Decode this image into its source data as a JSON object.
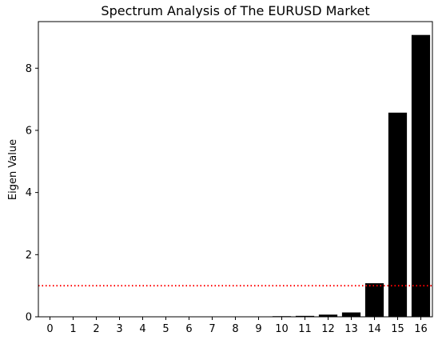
{
  "chart_data": {
    "type": "bar",
    "title": "Spectrum Analysis of The EURUSD Market",
    "xlabel": "",
    "ylabel": "Eigen Value",
    "categories": [
      "0",
      "1",
      "2",
      "3",
      "4",
      "5",
      "6",
      "7",
      "8",
      "9",
      "10",
      "11",
      "12",
      "13",
      "14",
      "15",
      "16"
    ],
    "values": [
      0.001,
      0.001,
      0.001,
      0.001,
      0.001,
      0.001,
      0.002,
      0.003,
      0.004,
      0.006,
      0.02,
      0.03,
      0.07,
      0.14,
      1.08,
      6.57,
      9.07
    ],
    "ylim": [
      0,
      9.5
    ],
    "yticks": [
      0,
      2,
      4,
      6,
      8
    ],
    "bar_color": "#000000",
    "reference_line": {
      "y": 1,
      "color": "#ff0000",
      "style": "dotted"
    },
    "grid": false
  }
}
